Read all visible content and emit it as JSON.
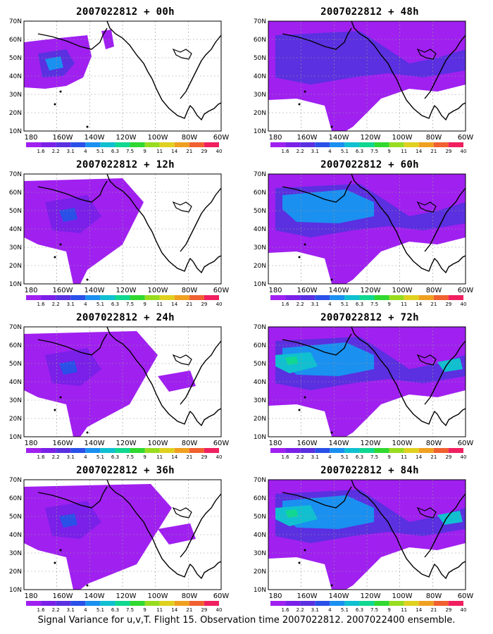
{
  "caption": "Signal Variance for u,v,T. Flight 15. Observation time 2007022812. 2007022400 ensemble.",
  "lat_labels": [
    "70N",
    "60N",
    "50N",
    "40N",
    "30N",
    "20N",
    "10N"
  ],
  "lon_labels": [
    "180",
    "160W",
    "140W",
    "120W",
    "100W",
    "80W",
    "60W"
  ],
  "colorbar": {
    "labels": [
      "1.6",
      "2.2",
      "3.1",
      "4",
      "5.1",
      "6.3",
      "7.5",
      "9",
      "11",
      "14",
      "21",
      "29",
      "40"
    ],
    "colors": [
      "#a020f0",
      "#7a20e8",
      "#5a30e0",
      "#2a50e8",
      "#1a90f0",
      "#10c0d0",
      "#10d890",
      "#30d830",
      "#98dc20",
      "#e0d020",
      "#f0a020",
      "#f06030",
      "#f02060"
    ]
  },
  "panels": [
    {
      "title": "2007022812 + 00h",
      "level": 0
    },
    {
      "title": "2007022812 + 48h",
      "level": 4
    },
    {
      "title": "2007022812 + 12h",
      "level": 1
    },
    {
      "title": "2007022812 + 60h",
      "level": 5
    },
    {
      "title": "2007022812 + 24h",
      "level": 2
    },
    {
      "title": "2007022812 + 72h",
      "level": 6
    },
    {
      "title": "2007022812 + 36h",
      "level": 3
    },
    {
      "title": "2007022812 + 84h",
      "level": 6
    }
  ]
}
